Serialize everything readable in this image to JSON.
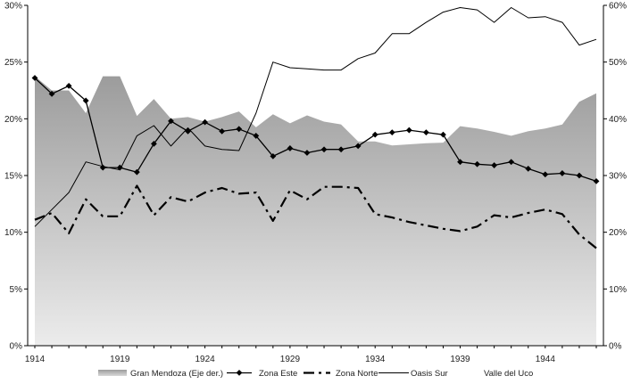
{
  "chart_data": {
    "type": "line",
    "x": [
      1914,
      1915,
      1916,
      1917,
      1918,
      1919,
      1920,
      1921,
      1922,
      1923,
      1924,
      1925,
      1926,
      1927,
      1928,
      1929,
      1930,
      1931,
      1932,
      1933,
      1934,
      1935,
      1936,
      1937,
      1938,
      1939,
      1940,
      1941,
      1942,
      1943,
      1944,
      1945,
      1946,
      1947
    ],
    "x_ticks": [
      "1914",
      "1919",
      "1924",
      "1929",
      "1934",
      "1939",
      "1944"
    ],
    "x_tick_values": [
      1914,
      1919,
      1924,
      1929,
      1934,
      1939,
      1944
    ],
    "ylim_left": [
      0,
      30
    ],
    "y_ticks_left": [
      "0%",
      "5%",
      "10%",
      "15%",
      "20%",
      "25%",
      "30%"
    ],
    "ylim_right": [
      0,
      60
    ],
    "y_ticks_right": [
      "0%",
      "10%",
      "20%",
      "30%",
      "40%",
      "50%",
      "60%"
    ],
    "series": [
      {
        "name": "Gran Mendoza (Eje der.)",
        "axis": "right",
        "style": "area",
        "values": [
          47.5,
          45,
          45,
          41,
          47.5,
          47.5,
          40.5,
          43.5,
          40,
          40.3,
          39.5,
          40.3,
          41.3,
          38.5,
          40.8,
          39.2,
          40.6,
          39.5,
          39,
          36,
          36,
          35.3,
          35.5,
          35.7,
          35.8,
          38.7,
          38.3,
          37.7,
          37,
          37.8,
          38.3,
          39,
          43,
          44.5
        ]
      },
      {
        "name": "Zona Este",
        "axis": "left",
        "style": "solid-diamond",
        "values": [
          23.6,
          22.2,
          22.9,
          21.6,
          15.7,
          15.7,
          15.3,
          17.8,
          19.8,
          18.9,
          19.7,
          18.9,
          19.1,
          18.5,
          16.7,
          17.4,
          17.0,
          17.3,
          17.3,
          17.6,
          18.6,
          18.8,
          19.0,
          18.8,
          18.6,
          16.2,
          16.0,
          15.9,
          16.2,
          15.6,
          15.1,
          15.2,
          15.0,
          14.5
        ]
      },
      {
        "name": "Zona Norte",
        "axis": "left",
        "style": "dash-dot",
        "values": [
          11.1,
          11.7,
          9.9,
          12.9,
          11.4,
          11.4,
          14.1,
          11.5,
          13.1,
          12.7,
          13.5,
          13.9,
          13.4,
          13.5,
          11.0,
          13.7,
          12.9,
          14.0,
          14.0,
          13.9,
          11.6,
          11.3,
          10.9,
          10.6,
          10.3,
          10.1,
          10.5,
          11.5,
          11.3,
          11.7,
          12.0,
          11.6,
          9.8,
          8.6
        ]
      },
      {
        "name": "Oasis Sur",
        "axis": "left",
        "style": "thin-solid",
        "values": [
          10.5,
          12.0,
          13.5,
          16.2,
          15.8,
          15.5,
          18.5,
          19.4,
          17.6,
          19.2,
          17.6,
          17.3,
          17.2,
          20.5,
          25.0,
          24.5,
          24.4,
          24.3,
          24.3,
          25.3,
          25.8,
          27.5,
          27.5,
          28.5,
          29.4,
          29.8,
          29.6,
          28.5,
          29.8,
          28.9,
          29.0,
          28.5,
          26.5,
          27.0
        ]
      }
    ],
    "legend": {
      "placement": "bottom",
      "entries": [
        "Gran Mendoza (Eje der.)",
        "Zona Este",
        "Zona Norte",
        "Oasis Sur",
        "Valle del Uco"
      ]
    },
    "grid": false,
    "title": "",
    "xlabel": "",
    "ylabel": ""
  }
}
